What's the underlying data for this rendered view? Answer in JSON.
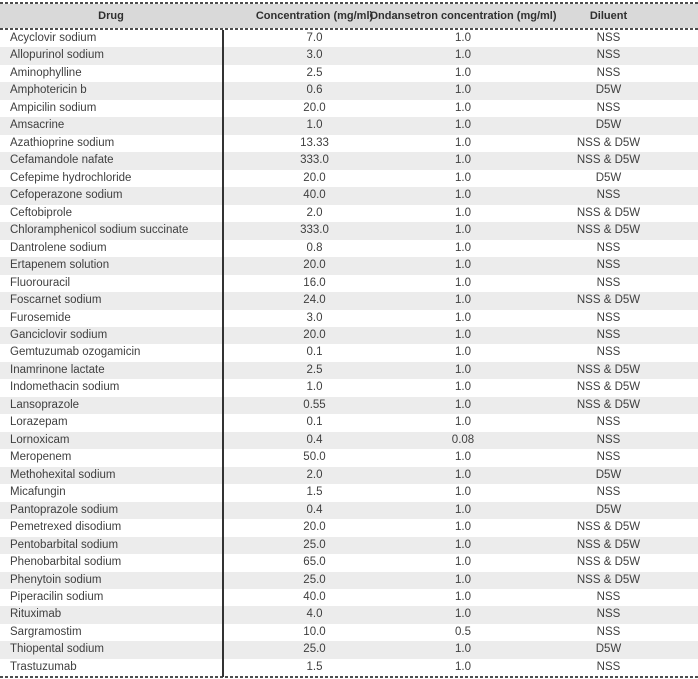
{
  "table": {
    "columns": [
      {
        "label": "Drug"
      },
      {
        "label": "Concentration (mg/ml)"
      },
      {
        "label": "Ondansetron concentration (mg/ml)"
      },
      {
        "label": "Diluent"
      }
    ],
    "rows": [
      [
        "Acyclovir sodium",
        "7.0",
        "1.0",
        "NSS"
      ],
      [
        "Allopurinol sodium",
        "3.0",
        "1.0",
        "NSS"
      ],
      [
        "Aminophylline",
        "2.5",
        "1.0",
        "NSS"
      ],
      [
        "Amphotericin b",
        "0.6",
        "1.0",
        "D5W"
      ],
      [
        "Ampicilin sodium",
        "20.0",
        "1.0",
        "NSS"
      ],
      [
        "Amsacrine",
        "1.0",
        "1.0",
        "D5W"
      ],
      [
        "Azathioprine sodium",
        "13.33",
        "1.0",
        "NSS & D5W"
      ],
      [
        "Cefamandole nafate",
        "333.0",
        "1.0",
        "NSS & D5W"
      ],
      [
        "Cefepime hydrochloride",
        "20.0",
        "1.0",
        "D5W"
      ],
      [
        "Cefoperazone sodium",
        "40.0",
        "1.0",
        "NSS"
      ],
      [
        "Ceftobiprole",
        "2.0",
        "1.0",
        "NSS & D5W"
      ],
      [
        "Chloramphenicol sodium succinate",
        "333.0",
        "1.0",
        "NSS & D5W"
      ],
      [
        "Dantrolene sodium",
        "0.8",
        "1.0",
        "NSS"
      ],
      [
        "Ertapenem solution",
        "20.0",
        "1.0",
        "NSS"
      ],
      [
        "Fluorouracil",
        "16.0",
        "1.0",
        "NSS"
      ],
      [
        "Foscarnet sodium",
        "24.0",
        "1.0",
        "NSS & D5W"
      ],
      [
        "Furosemide",
        "3.0",
        "1.0",
        "NSS"
      ],
      [
        "Ganciclovir sodium",
        "20.0",
        "1.0",
        "NSS"
      ],
      [
        "Gemtuzumab ozogamicin",
        "0.1",
        "1.0",
        "NSS"
      ],
      [
        "Inamrinone lactate",
        "2.5",
        "1.0",
        "NSS & D5W"
      ],
      [
        "Indomethacin sodium",
        "1.0",
        "1.0",
        "NSS & D5W"
      ],
      [
        "Lansoprazole",
        "0.55",
        "1.0",
        "NSS & D5W"
      ],
      [
        "Lorazepam",
        "0.1",
        "1.0",
        "NSS"
      ],
      [
        "Lornoxicam",
        "0.4",
        "0.08",
        "NSS"
      ],
      [
        "Meropenem",
        "50.0",
        "1.0",
        "NSS"
      ],
      [
        "Methohexital sodium",
        "2.0",
        "1.0",
        "D5W"
      ],
      [
        "Micafungin",
        "1.5",
        "1.0",
        "NSS"
      ],
      [
        "Pantoprazole sodium",
        "0.4",
        "1.0",
        "D5W"
      ],
      [
        "Pemetrexed disodium",
        "20.0",
        "1.0",
        "NSS & D5W"
      ],
      [
        "Pentobarbital sodium",
        "25.0",
        "1.0",
        "NSS & D5W"
      ],
      [
        "Phenobarbital sodium",
        "65.0",
        "1.0",
        "NSS & D5W"
      ],
      [
        "Phenytoin sodium",
        "25.0",
        "1.0",
        "NSS & D5W"
      ],
      [
        "Piperacilin sodium",
        "40.0",
        "1.0",
        "NSS"
      ],
      [
        "Rituximab",
        "4.0",
        "1.0",
        "NSS"
      ],
      [
        "Sargramostim",
        "10.0",
        "0.5",
        "NSS"
      ],
      [
        "Thiopental sodium",
        "25.0",
        "1.0",
        "D5W"
      ],
      [
        "Trastuzumab",
        "1.5",
        "1.0",
        "NSS"
      ]
    ]
  },
  "colors": {
    "header_bg": "#d9d9d9",
    "stripe_bg": "#ececec",
    "text": "#3f3f3f",
    "border": "#4d4d4d"
  }
}
